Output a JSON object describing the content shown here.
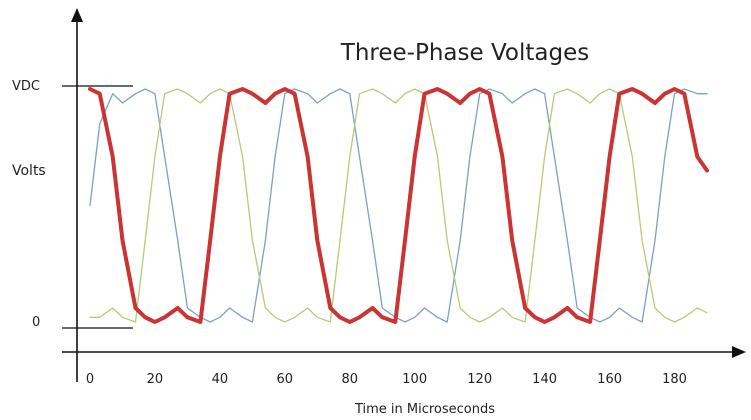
{
  "chart_data": {
    "type": "line",
    "title": "Three-Phase Voltages",
    "xlabel": "Time in Microseconds",
    "ylabel": "Volts",
    "x_ticks": [
      "0",
      "20",
      "40",
      "60",
      "80",
      "100",
      "120",
      "140",
      "160",
      "180"
    ],
    "y_ticks": [
      "0",
      "VDC"
    ],
    "xlim": [
      0,
      190
    ],
    "ylim": [
      0,
      1
    ],
    "grid": false,
    "legend": "none",
    "period_us": 60,
    "series": [
      {
        "color": "#cc3333",
        "emphasized": true,
        "x": [
          0,
          3,
          7,
          10,
          14,
          17,
          20,
          23,
          27,
          30,
          34,
          37,
          40,
          43,
          47,
          50,
          54,
          57,
          60,
          63,
          67,
          70,
          74,
          77,
          80,
          83,
          87,
          90,
          94,
          97,
          100,
          103,
          107,
          110,
          114,
          117,
          120,
          123,
          127,
          130,
          134,
          137,
          140,
          143,
          147,
          150,
          154,
          157,
          160,
          163,
          167,
          170,
          174,
          177,
          180,
          183,
          187,
          190
        ],
        "y": [
          1.0,
          0.98,
          0.71,
          0.35,
          0.06,
          0.02,
          0.0,
          0.02,
          0.06,
          0.02,
          0.0,
          0.35,
          0.71,
          0.98,
          1.0,
          0.98,
          0.94,
          0.98,
          1.0,
          0.98,
          0.71,
          0.35,
          0.06,
          0.02,
          0.0,
          0.02,
          0.06,
          0.02,
          0.0,
          0.35,
          0.71,
          0.98,
          1.0,
          0.98,
          0.94,
          0.98,
          1.0,
          0.98,
          0.71,
          0.35,
          0.06,
          0.02,
          0.0,
          0.02,
          0.06,
          0.02,
          0.0,
          0.35,
          0.71,
          0.98,
          1.0,
          0.98,
          0.94,
          0.98,
          1.0,
          0.98,
          0.71,
          0.65
        ]
      },
      {
        "color": "#7aa0cc",
        "emphasized": false,
        "x": [
          0,
          3,
          7,
          10,
          14,
          17,
          20,
          23,
          27,
          30,
          34,
          37,
          40,
          43,
          47,
          50,
          54,
          57,
          60,
          63,
          67,
          70,
          74,
          77,
          80,
          83,
          87,
          90,
          94,
          97,
          100,
          103,
          107,
          110,
          114,
          117,
          120,
          123,
          127,
          130,
          134,
          137,
          140,
          143,
          147,
          150,
          154,
          157,
          160,
          163,
          167,
          170,
          174,
          177,
          180,
          183,
          187,
          190
        ],
        "y": [
          0.5,
          0.85,
          0.98,
          0.94,
          0.98,
          1.0,
          0.98,
          0.71,
          0.35,
          0.06,
          0.02,
          0.0,
          0.02,
          0.06,
          0.02,
          0.0,
          0.35,
          0.71,
          0.98,
          1.0,
          0.98,
          0.94,
          0.98,
          1.0,
          0.98,
          0.71,
          0.35,
          0.06,
          0.02,
          0.0,
          0.02,
          0.06,
          0.02,
          0.0,
          0.35,
          0.71,
          0.98,
          1.0,
          0.98,
          0.94,
          0.98,
          1.0,
          0.98,
          0.71,
          0.35,
          0.06,
          0.02,
          0.0,
          0.02,
          0.06,
          0.02,
          0.0,
          0.35,
          0.71,
          0.98,
          1.0,
          0.98,
          0.98
        ]
      },
      {
        "color": "#b5cc72",
        "emphasized": false,
        "x": [
          0,
          3,
          7,
          10,
          14,
          17,
          20,
          23,
          27,
          30,
          34,
          37,
          40,
          43,
          47,
          50,
          54,
          57,
          60,
          63,
          67,
          70,
          74,
          77,
          80,
          83,
          87,
          90,
          94,
          97,
          100,
          103,
          107,
          110,
          114,
          117,
          120,
          123,
          127,
          130,
          134,
          137,
          140,
          143,
          147,
          150,
          154,
          157,
          160,
          163,
          167,
          170,
          174,
          177,
          180,
          183,
          187,
          190
        ],
        "y": [
          0.02,
          0.02,
          0.06,
          0.02,
          0.0,
          0.35,
          0.71,
          0.98,
          1.0,
          0.98,
          0.94,
          0.98,
          1.0,
          0.98,
          0.71,
          0.35,
          0.06,
          0.02,
          0.0,
          0.02,
          0.06,
          0.02,
          0.0,
          0.35,
          0.71,
          0.98,
          1.0,
          0.98,
          0.94,
          0.98,
          1.0,
          0.98,
          0.71,
          0.35,
          0.06,
          0.02,
          0.0,
          0.02,
          0.06,
          0.02,
          0.0,
          0.35,
          0.71,
          0.98,
          1.0,
          0.98,
          0.94,
          0.98,
          1.0,
          0.98,
          0.71,
          0.35,
          0.06,
          0.02,
          0.0,
          0.02,
          0.06,
          0.04
        ]
      }
    ]
  }
}
